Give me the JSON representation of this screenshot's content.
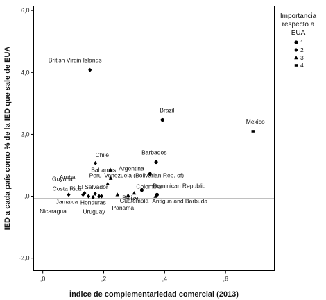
{
  "chart_data": {
    "type": "scatter",
    "xlabel": "Índice de complementariedad comercial (2013)",
    "ylabel": "IED a cada país como % de la IED que sale de EUA",
    "xlim": [
      -0.03,
      0.76
    ],
    "ylim": [
      -2.4,
      6.15
    ],
    "xticks": [
      0.0,
      0.2,
      0.4,
      0.6
    ],
    "xtick_labels": [
      ",0",
      ",2",
      ",4",
      ",6"
    ],
    "yticks": [
      -2.0,
      0.0,
      2.0,
      4.0,
      6.0
    ],
    "ytick_labels": [
      "-2,0",
      ",0",
      "2,0",
      "4,0",
      "6,0"
    ],
    "grid": false,
    "reference_line_y": 0.0,
    "legend": {
      "title": "Importancia respecto a EUA",
      "title_lines": [
        "Importancia",
        "respecto a",
        "EUA"
      ],
      "placement": "right",
      "entries": [
        {
          "label": "1",
          "marker": "circle"
        },
        {
          "label": "2",
          "marker": "diamond"
        },
        {
          "label": "3",
          "marker": "triangle"
        },
        {
          "label": "4",
          "marker": "square"
        }
      ]
    },
    "points": [
      {
        "label": "British Virgin Islands",
        "x": 0.155,
        "y": 4.08,
        "group": "2"
      },
      {
        "label": "Brazil",
        "x": 0.393,
        "y": 2.47,
        "group": "1"
      },
      {
        "label": "Mexico",
        "x": 0.69,
        "y": 2.1,
        "group": "4"
      },
      {
        "label": "Chile",
        "x": 0.173,
        "y": 1.07,
        "group": "2"
      },
      {
        "label": "Barbados",
        "x": 0.372,
        "y": 1.1,
        "group": "1"
      },
      {
        "label": "Bahamas",
        "x": 0.222,
        "y": 0.85,
        "group": "3"
      },
      {
        "label": "Argentina",
        "x": 0.352,
        "y": 0.72,
        "group": "1"
      },
      {
        "label": "Peru",
        "x": 0.223,
        "y": 0.58,
        "group": "3"
      },
      {
        "label": "Venezuela (Bolivarian Rep. of)",
        "x": 0.213,
        "y": 0.4,
        "group": "3"
      },
      {
        "label": "Guyana",
        "x": 0.085,
        "y": 0.05,
        "group": "2"
      },
      {
        "label": "Aruba",
        "x": 0.137,
        "y": 0.1,
        "group": "2"
      },
      {
        "label": "Costa Rica",
        "x": 0.132,
        "y": 0.05,
        "group": "2"
      },
      {
        "label": "El Salvador",
        "x": 0.172,
        "y": 0.08,
        "group": "2"
      },
      {
        "label": "Jamaica",
        "x": 0.15,
        "y": 0.0,
        "group": "2"
      },
      {
        "label": "Honduras",
        "x": 0.185,
        "y": 0.0,
        "group": "2"
      },
      {
        "label": "Nicaragua",
        "x": 0.165,
        "y": -0.03,
        "group": "2"
      },
      {
        "label": "Uruguay",
        "x": 0.193,
        "y": 0.0,
        "group": "2"
      },
      {
        "label": "Belize",
        "x": 0.245,
        "y": 0.05,
        "group": "3"
      },
      {
        "label": "Guatemala",
        "x": 0.28,
        "y": 0.03,
        "group": "3"
      },
      {
        "label": "Panama",
        "x": 0.3,
        "y": 0.1,
        "group": "3"
      },
      {
        "label": "Colombia",
        "x": 0.325,
        "y": 0.2,
        "group": "1"
      },
      {
        "label": "Dominican Republic",
        "x": 0.375,
        "y": 0.05,
        "group": "1"
      },
      {
        "label": "Antigua and Barbuda",
        "x": 0.37,
        "y": 0.0,
        "group": "3"
      }
    ]
  }
}
